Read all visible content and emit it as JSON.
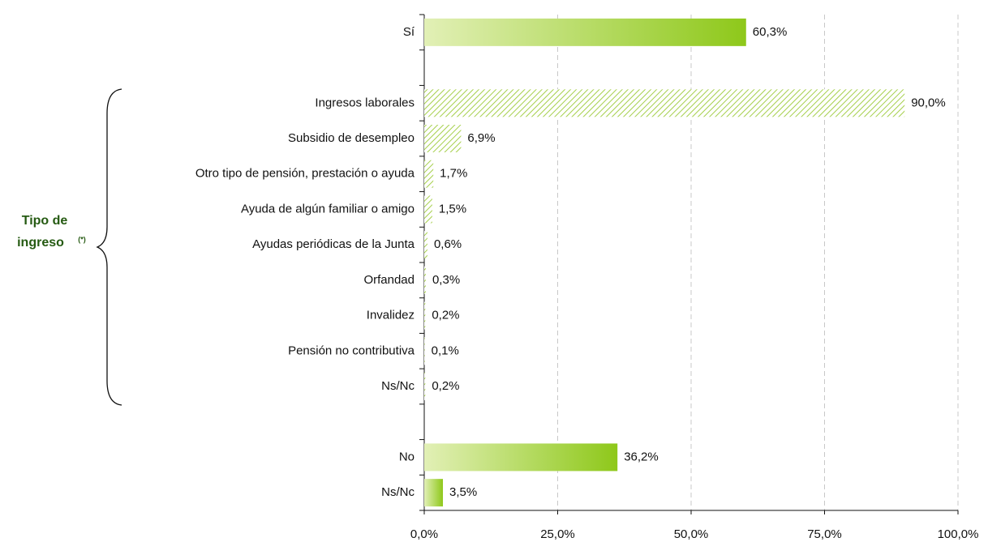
{
  "chart_data": {
    "type": "hbar",
    "categories": [
      "Sí",
      null,
      "Ingresos laborales",
      "Subsidio de desempleo",
      "Otro tipo de pensión, prestación o ayuda",
      "Ayuda de algún familiar o amigo",
      "Ayudas periódicas de la Junta",
      "Orfandad",
      "Invalidez",
      "Pensión no contributiva",
      "Ns/Nc",
      null,
      "No",
      "Ns/Nc"
    ],
    "values": [
      60.3,
      null,
      90.0,
      6.9,
      1.7,
      1.5,
      0.6,
      0.3,
      0.2,
      0.1,
      0.2,
      null,
      36.2,
      3.5
    ],
    "value_labels": [
      "60,3%",
      null,
      "90,0%",
      "6,9%",
      "1,7%",
      "1,5%",
      "0,6%",
      "0,3%",
      "0,2%",
      "0,1%",
      "0,2%",
      null,
      "36,2%",
      "3,5%"
    ],
    "bar_styles": [
      "gradient",
      null,
      "hatch",
      "hatch",
      "hatch",
      "hatch",
      "hatch",
      "hatch",
      "hatch",
      "hatch",
      "hatch",
      null,
      "gradient",
      "gradient"
    ],
    "colors": [
      "#e2f0b6",
      "#8ec81a"
    ],
    "hatch_color": "#a5cf4a",
    "xlim": [
      0,
      100
    ],
    "xticks": [
      {
        "value": 0,
        "label": "0,0%"
      },
      {
        "value": 25,
        "label": "25,0%"
      },
      {
        "value": 50,
        "label": "50,0%"
      },
      {
        "value": 75,
        "label": "75,0%"
      },
      {
        "value": 100,
        "label": "100,0%"
      }
    ],
    "grid": true,
    "annotation": [
      "Tipo de",
      "ingreso"
    ],
    "annotation_note": "(*)"
  }
}
